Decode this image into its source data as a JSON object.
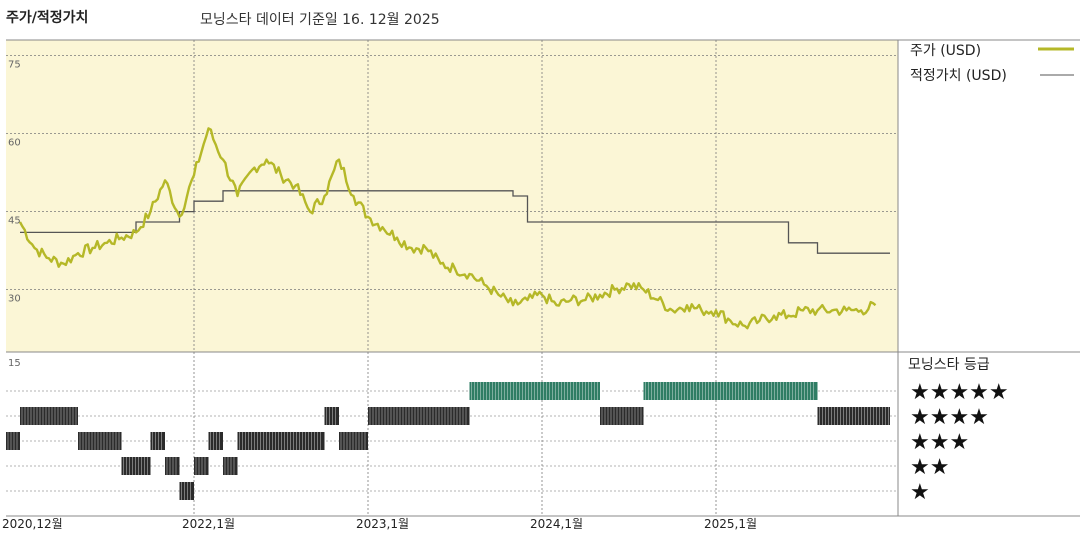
{
  "header": {
    "title": "주가/적정가치",
    "subtitle": "모닝스타 데이터 기준일 16. 12월 2025"
  },
  "colors": {
    "price": "#b5b828",
    "fair_value": "#555555",
    "upper_bg": "#fbf6d6",
    "five_star": "#2f7d64",
    "rating_bar": "#2b2b2b",
    "grid": "#bdbdbd"
  },
  "legend": {
    "price_label": "주가 (USD)",
    "fair_label": "적정가치 (USD)",
    "rating_title": "모닝스타 등급",
    "stars": [
      "★★★★★",
      "★★★★",
      "★★★",
      "★★",
      "★"
    ]
  },
  "chart_data": [
    {
      "type": "line",
      "title": "주가/적정가치",
      "y_ticks": [
        30,
        45,
        60,
        75
      ],
      "ylim": [
        18,
        78
      ],
      "x_range": [
        "2021-01",
        "2026-01"
      ],
      "x_ticks": [
        "2020,12월",
        "2022,1월",
        "2023,1월",
        "2024,1월",
        "2025,1월"
      ],
      "series": [
        {
          "name": "주가 (USD)",
          "color": "#b5b828",
          "points": [
            [
              "2021-01",
              43
            ],
            [
              "2021-02",
              38
            ],
            [
              "2021-03",
              36
            ],
            [
              "2021-04",
              35
            ],
            [
              "2021-05",
              37
            ],
            [
              "2021-06",
              38
            ],
            [
              "2021-07",
              39
            ],
            [
              "2021-08",
              40
            ],
            [
              "2021-09",
              41
            ],
            [
              "2021-10",
              45
            ],
            [
              "2021-11",
              51
            ],
            [
              "2021-12",
              44
            ],
            [
              "2022-01",
              52
            ],
            [
              "2022-02",
              61
            ],
            [
              "2022-03",
              55
            ],
            [
              "2022-04",
              48
            ],
            [
              "2022-05",
              53
            ],
            [
              "2022-06",
              55
            ],
            [
              "2022-07",
              52
            ],
            [
              "2022-08",
              50
            ],
            [
              "2022-09",
              45
            ],
            [
              "2022-10",
              48
            ],
            [
              "2022-11",
              55
            ],
            [
              "2022-12",
              48
            ],
            [
              "2023-01",
              44
            ],
            [
              "2023-02",
              42
            ],
            [
              "2023-03",
              40
            ],
            [
              "2023-04",
              38
            ],
            [
              "2023-05",
              38
            ],
            [
              "2023-06",
              35
            ],
            [
              "2023-07",
              34
            ],
            [
              "2023-08",
              33
            ],
            [
              "2023-09",
              31
            ],
            [
              "2023-10",
              29
            ],
            [
              "2023-11",
              27
            ],
            [
              "2023-12",
              28
            ],
            [
              "2024-01",
              29
            ],
            [
              "2024-02",
              27
            ],
            [
              "2024-03",
              28
            ],
            [
              "2024-04",
              28
            ],
            [
              "2024-05",
              29
            ],
            [
              "2024-06",
              30
            ],
            [
              "2024-07",
              31
            ],
            [
              "2024-08",
              30
            ],
            [
              "2024-09",
              28
            ],
            [
              "2024-10",
              26
            ],
            [
              "2024-11",
              27
            ],
            [
              "2024-12",
              26
            ],
            [
              "2025-01",
              26
            ],
            [
              "2025-02",
              24
            ],
            [
              "2025-03",
              23
            ],
            [
              "2025-04",
              24
            ],
            [
              "2025-05",
              25
            ],
            [
              "2025-06",
              25
            ],
            [
              "2025-07",
              26
            ],
            [
              "2025-08",
              26
            ],
            [
              "2025-09",
              26
            ],
            [
              "2025-10",
              26
            ],
            [
              "2025-11",
              26
            ],
            [
              "2025-12",
              27
            ]
          ]
        },
        {
          "name": "적정가치 (USD)",
          "color": "#555555",
          "steps": [
            [
              "2021-01",
              41
            ],
            [
              "2021-09",
              43
            ],
            [
              "2021-12",
              45
            ],
            [
              "2022-01",
              47
            ],
            [
              "2022-03",
              49
            ],
            [
              "2023-11",
              48
            ],
            [
              "2023-12",
              43
            ],
            [
              "2025-06",
              39
            ],
            [
              "2025-08",
              37
            ],
            [
              "2026-01",
              37
            ]
          ]
        }
      ]
    },
    {
      "type": "timeline",
      "title": "모닝스타 등급",
      "rows": [
        "5",
        "4",
        "3",
        "2",
        "1"
      ],
      "segments": [
        {
          "stars": 3,
          "from": "2020-12",
          "to": "2021-01"
        },
        {
          "stars": 4,
          "from": "2021-01",
          "to": "2021-05"
        },
        {
          "stars": 3,
          "from": "2021-05",
          "to": "2021-08"
        },
        {
          "stars": 2,
          "from": "2021-08",
          "to": "2021-10"
        },
        {
          "stars": 3,
          "from": "2021-10",
          "to": "2021-11"
        },
        {
          "stars": 2,
          "from": "2021-11",
          "to": "2021-12"
        },
        {
          "stars": 1,
          "from": "2021-12",
          "to": "2022-01"
        },
        {
          "stars": 2,
          "from": "2022-01",
          "to": "2022-02"
        },
        {
          "stars": 3,
          "from": "2022-02",
          "to": "2022-03"
        },
        {
          "stars": 2,
          "from": "2022-03",
          "to": "2022-04"
        },
        {
          "stars": 3,
          "from": "2022-04",
          "to": "2022-10"
        },
        {
          "stars": 4,
          "from": "2022-10",
          "to": "2022-11"
        },
        {
          "stars": 3,
          "from": "2022-11",
          "to": "2023-01"
        },
        {
          "stars": 4,
          "from": "2023-01",
          "to": "2023-08"
        },
        {
          "stars": 5,
          "from": "2023-08",
          "to": "2024-05"
        },
        {
          "stars": 4,
          "from": "2024-05",
          "to": "2024-08"
        },
        {
          "stars": 5,
          "from": "2024-08",
          "to": "2025-08"
        },
        {
          "stars": 4,
          "from": "2025-08",
          "to": "2026-01"
        }
      ]
    }
  ]
}
